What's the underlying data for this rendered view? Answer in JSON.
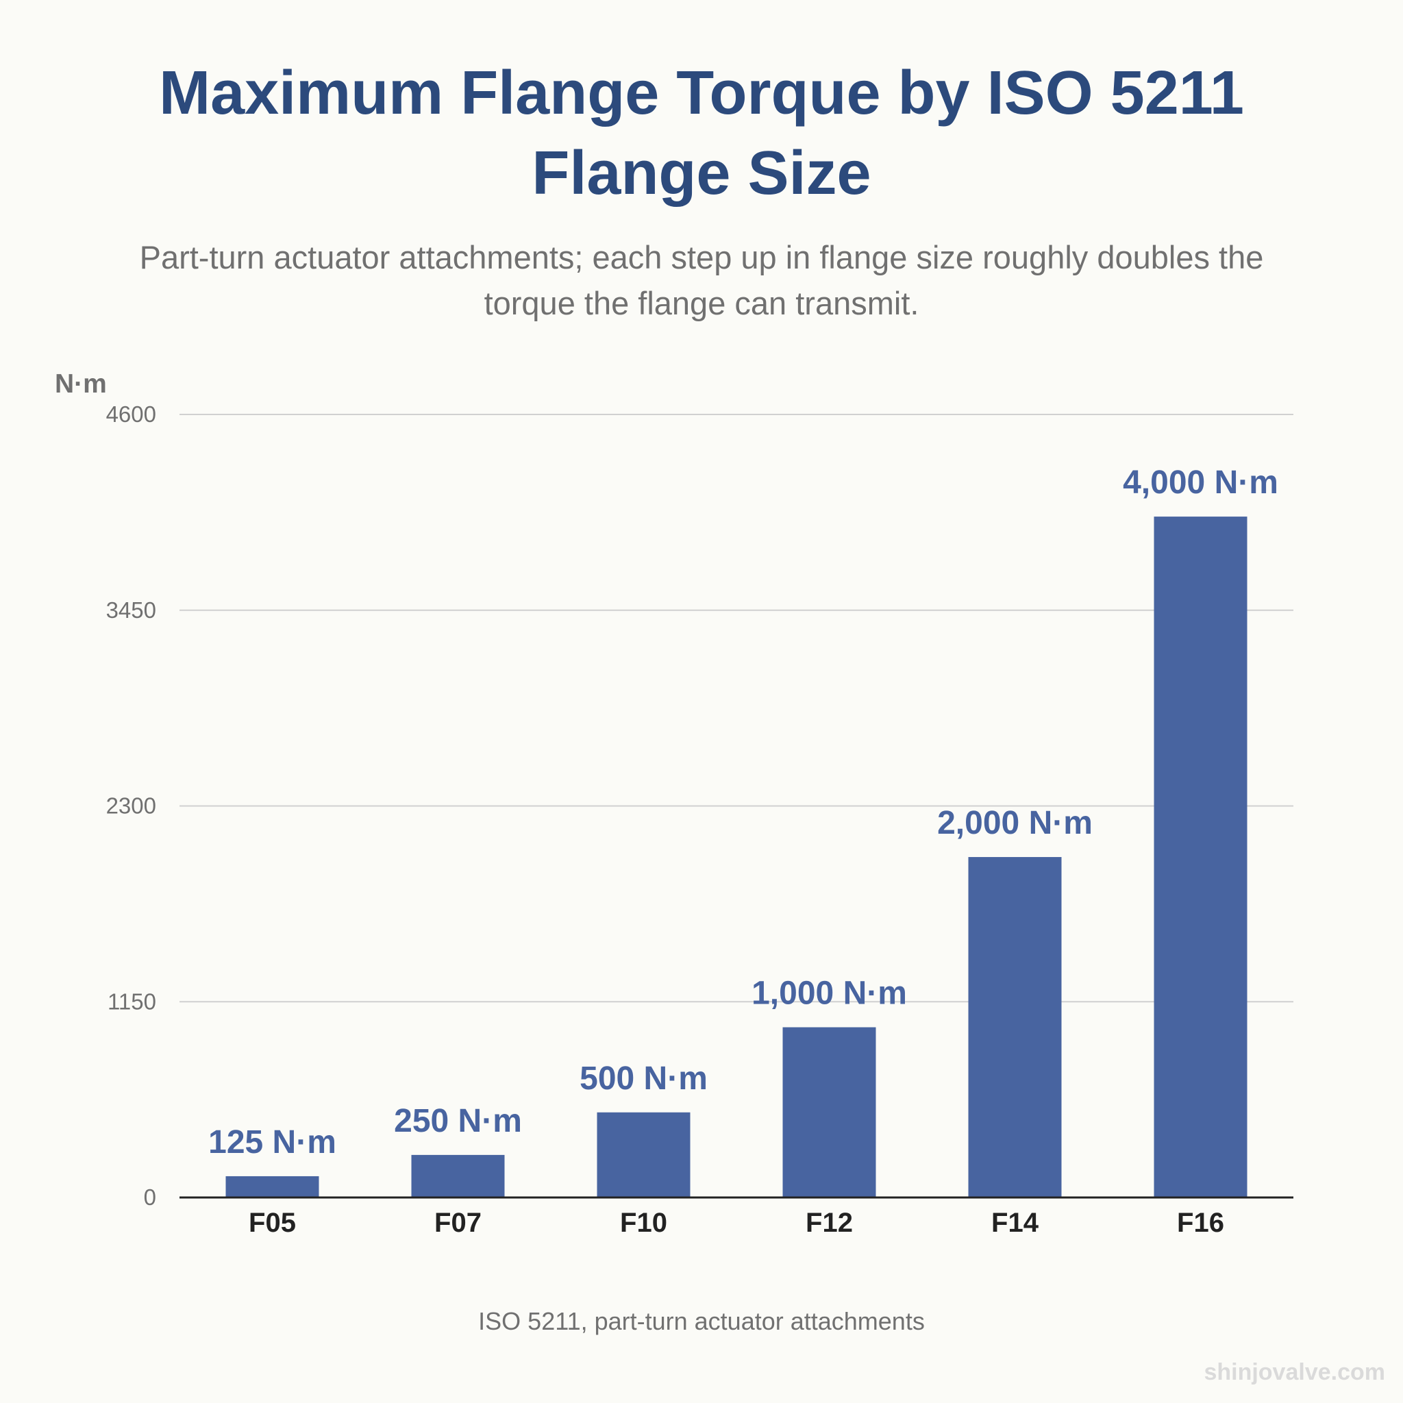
{
  "title": "Maximum Flange Torque by ISO 5211 Flange Size",
  "subtitle": "Part-turn actuator attachments; each step up in flange size roughly doubles the torque the flange can transmit.",
  "source": "ISO 5211, part-turn actuator attachments",
  "watermark": "shinjovalve.com",
  "colors": {
    "bar": "#4864a0",
    "bar_label": "#4864a0",
    "title": "#2c4a7c",
    "muted_text": "#707070",
    "category_label": "#222222",
    "grid": "#d0d0d0",
    "baseline": "#222222",
    "background": "#fbfbf7"
  },
  "chart_data": {
    "type": "bar",
    "title": "Maximum Flange Torque by ISO 5211 Flange Size",
    "ylabel": "N·m",
    "xlabel": "",
    "categories": [
      "F05",
      "F07",
      "F10",
      "F12",
      "F14",
      "F16"
    ],
    "values": [
      125,
      250,
      500,
      1000,
      2000,
      4000
    ],
    "data_labels": [
      "125 N·m",
      "250 N·m",
      "500 N·m",
      "1,000 N·m",
      "2,000 N·m",
      "4,000 N·m"
    ],
    "ylim": [
      0,
      4600
    ],
    "yticks": [
      0,
      1150,
      2300,
      3450,
      4600
    ],
    "ytick_labels": [
      "0",
      "1150",
      "2300",
      "3450",
      "4600"
    ],
    "grid": true,
    "legend": "none"
  }
}
